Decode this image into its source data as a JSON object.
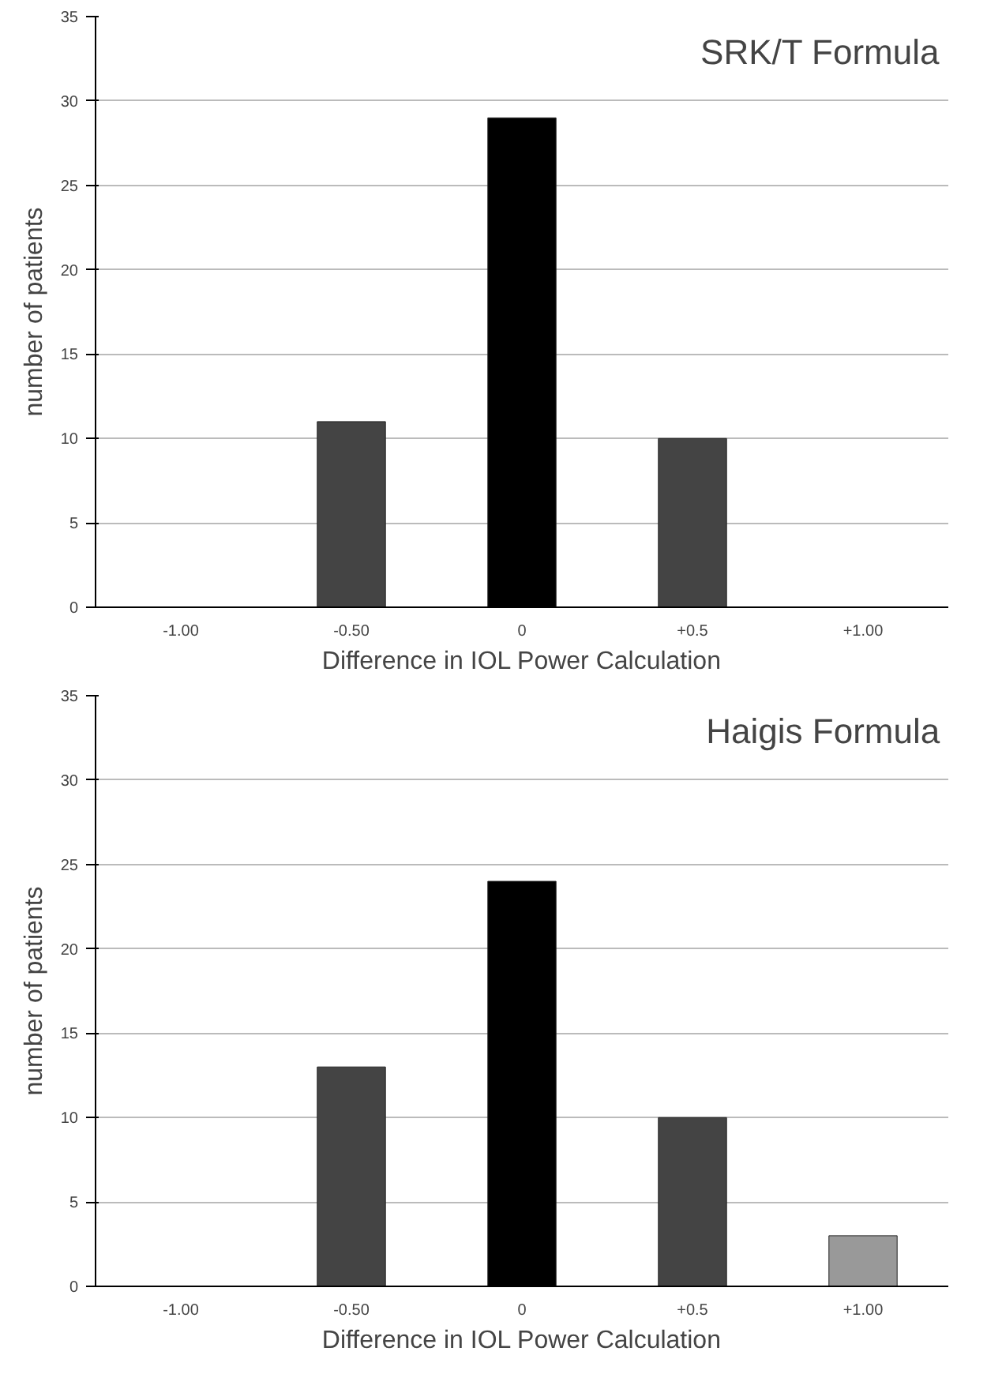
{
  "chart_data": [
    {
      "type": "bar",
      "title": "SRK/T Formula",
      "xlabel": "Difference in IOL Power Calculation",
      "ylabel": "number of patients",
      "categories": [
        "-1.00",
        "-0.50",
        "0",
        "+0.5",
        "+1.00"
      ],
      "values": [
        0,
        11,
        29,
        10,
        0
      ],
      "colors": [
        "#444444",
        "#444444",
        "#000000",
        "#444444",
        "#999999"
      ],
      "ylim": [
        0,
        35
      ],
      "yticks": [
        0,
        5,
        10,
        15,
        20,
        25,
        30,
        35
      ],
      "grid": "y"
    },
    {
      "type": "bar",
      "title": "Haigis Formula",
      "xlabel": "Difference in IOL Power Calculation",
      "ylabel": "number of patients",
      "categories": [
        "-1.00",
        "-0.50",
        "0",
        "+0.5",
        "+1.00"
      ],
      "values": [
        0,
        13,
        24,
        10,
        3
      ],
      "colors": [
        "#444444",
        "#444444",
        "#000000",
        "#444444",
        "#999999"
      ],
      "ylim": [
        0,
        35
      ],
      "yticks": [
        0,
        5,
        10,
        15,
        20,
        25,
        30,
        35
      ],
      "grid": "y"
    }
  ]
}
